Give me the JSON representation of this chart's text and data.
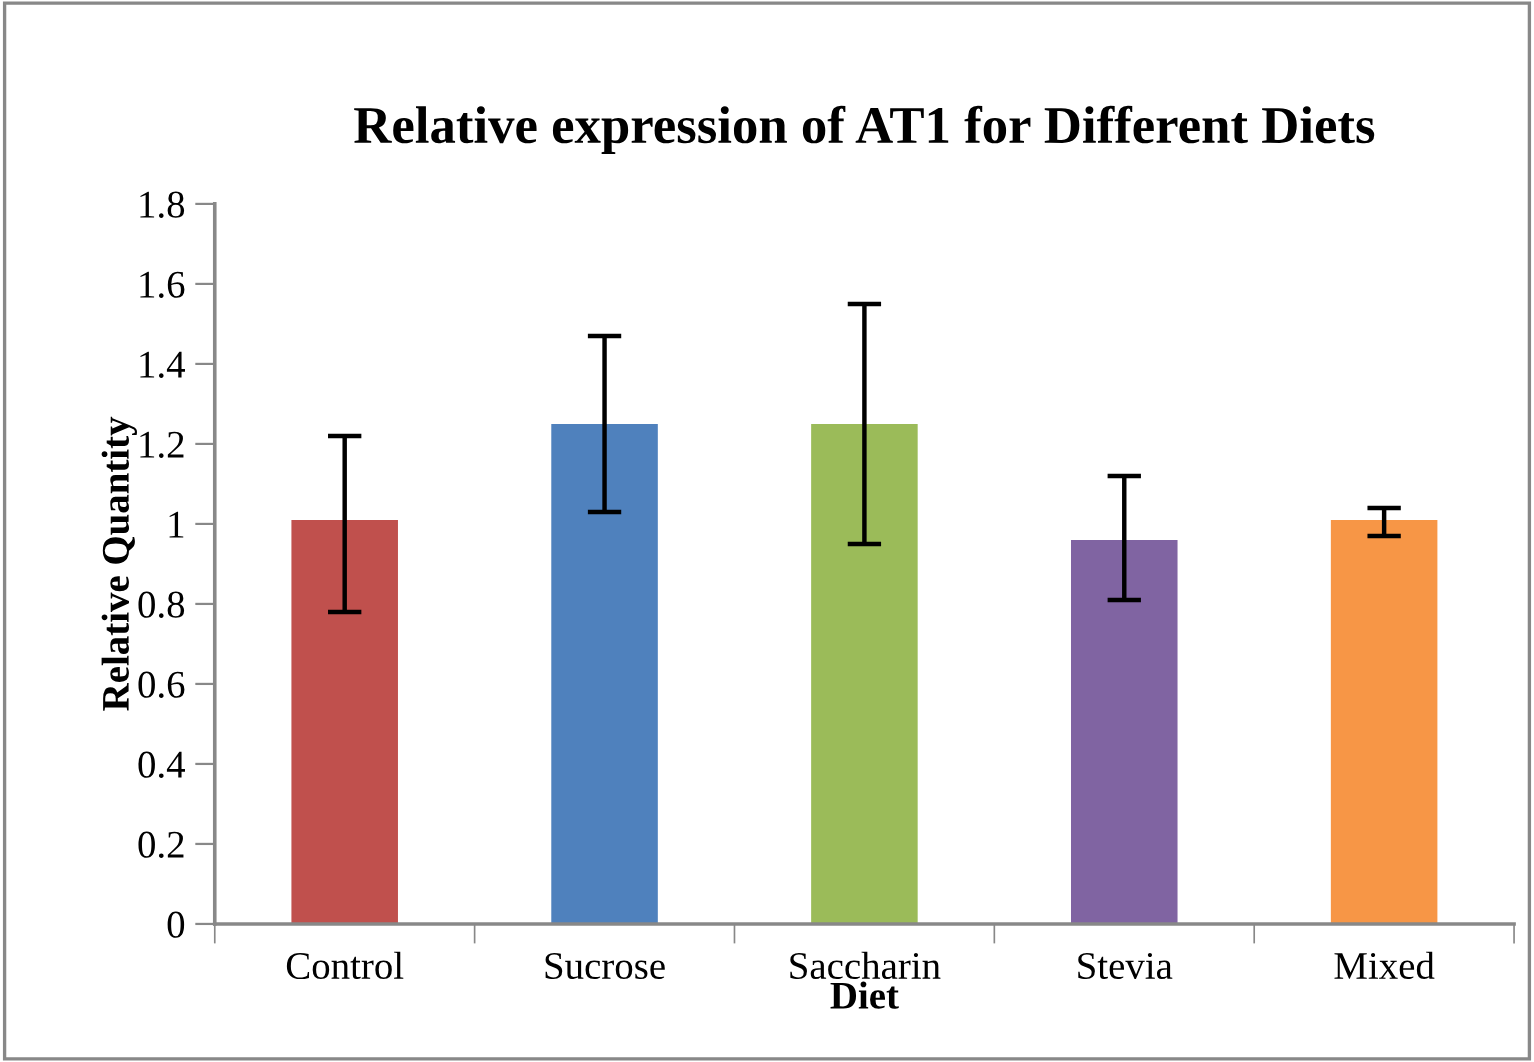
{
  "chart_data": {
    "type": "bar",
    "title": "Relative expression of AT1 for Different Diets",
    "xlabel": "Diet",
    "ylabel": "Relative Quantity",
    "categories": [
      "Control",
      "Sucrose",
      "Saccharin",
      "Stevia",
      "Mixed"
    ],
    "values": [
      1.01,
      1.25,
      1.25,
      0.96,
      1.01
    ],
    "colors": [
      "#c0504d",
      "#4f81bd",
      "#9bbb59",
      "#8064a2",
      "#f79646"
    ],
    "errors": [
      [
        0.78,
        1.22
      ],
      [
        1.03,
        1.47
      ],
      [
        0.95,
        1.55
      ],
      [
        0.81,
        1.12
      ],
      [
        0.97,
        1.04
      ]
    ],
    "ylim": [
      0,
      1.8
    ],
    "yticks": [
      0,
      0.2,
      0.4,
      0.6,
      0.8,
      1,
      1.2,
      1.4,
      1.6,
      1.8
    ],
    "grid": false,
    "legend": false
  }
}
